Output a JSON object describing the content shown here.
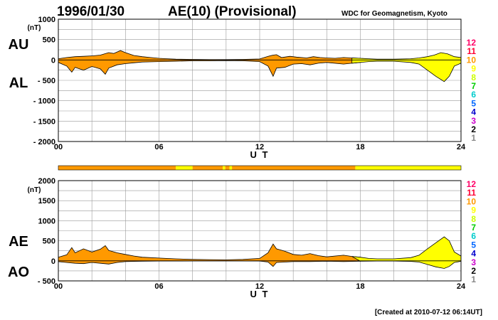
{
  "header": {
    "date": "1996/01/30",
    "title": "AE(10) (Provisional)",
    "source": "WDC for Geomagnetism, Kyoto"
  },
  "footer": {
    "created": "[Created at 2010-07-12 06:14UT]"
  },
  "colors": {
    "orange": "#ff9900",
    "yellow": "#ffff00",
    "grid": "#999999",
    "levels": [
      "#cccccc",
      "#888888",
      "#000000",
      "#cc00cc",
      "#0000cc",
      "#0066ff",
      "#00cccc",
      "#00cc00",
      "#ccff00",
      "#ffff00",
      "#ff9900",
      "#ff0033",
      "#ff0066"
    ]
  },
  "level_labels": [
    "1",
    "2",
    "3",
    "4",
    "5",
    "6",
    "7",
    "8",
    "9",
    "10",
    "11",
    "12"
  ],
  "activity_bar": [
    {
      "from": 0,
      "to": 7.0,
      "level": 10
    },
    {
      "from": 7.0,
      "to": 8.0,
      "level": 9
    },
    {
      "from": 8.0,
      "to": 9.8,
      "level": 10
    },
    {
      "from": 9.8,
      "to": 9.95,
      "level": 9
    },
    {
      "from": 9.95,
      "to": 10.2,
      "level": 10
    },
    {
      "from": 10.2,
      "to": 10.35,
      "level": 9
    },
    {
      "from": 10.35,
      "to": 17.7,
      "level": 10
    },
    {
      "from": 17.7,
      "to": 24,
      "level": 9
    }
  ],
  "chart_data": [
    {
      "type": "area",
      "panel": "AU/AL",
      "ylabel_top": "AU",
      "ylabel_bottom": "AL",
      "unit": "(nT)",
      "xlabel": "U T",
      "ylim": [
        -2000,
        1000
      ],
      "yticks": [
        "1000",
        "500",
        "0",
        "- 500",
        "- 1000",
        "- 1500",
        "- 2000"
      ],
      "ytick_values": [
        1000,
        500,
        0,
        -500,
        -1000,
        -1500,
        -2000
      ],
      "xticks": [
        "00",
        "06",
        "12",
        "18",
        "24"
      ],
      "xtick_values": [
        0,
        6,
        12,
        18,
        24
      ],
      "grid": true,
      "series": [
        {
          "values_upper": [
            [
              0,
              30
            ],
            [
              0.5,
              60
            ],
            [
              1,
              80
            ],
            [
              1.5,
              90
            ],
            [
              2,
              100
            ],
            [
              2.5,
              120
            ],
            [
              3,
              180
            ],
            [
              3.3,
              160
            ],
            [
              3.7,
              230
            ],
            [
              4,
              180
            ],
            [
              4.5,
              110
            ],
            [
              5,
              80
            ],
            [
              5.5,
              60
            ],
            [
              6,
              40
            ],
            [
              6.5,
              30
            ],
            [
              7,
              20
            ],
            [
              8,
              15
            ],
            [
              9,
              10
            ],
            [
              10,
              10
            ],
            [
              11,
              15
            ],
            [
              12,
              25
            ],
            [
              12.5,
              90
            ],
            [
              12.8,
              120
            ],
            [
              13,
              130
            ],
            [
              13.3,
              60
            ],
            [
              13.8,
              90
            ],
            [
              14.2,
              70
            ],
            [
              14.8,
              50
            ],
            [
              15.2,
              80
            ],
            [
              15.6,
              60
            ],
            [
              16,
              50
            ],
            [
              16.5,
              40
            ],
            [
              17,
              60
            ],
            [
              17.5,
              50
            ],
            [
              18,
              40
            ],
            [
              18.5,
              30
            ],
            [
              19,
              20
            ],
            [
              20,
              20
            ],
            [
              21,
              30
            ],
            [
              21.5,
              50
            ],
            [
              22,
              80
            ],
            [
              22.4,
              120
            ],
            [
              22.8,
              180
            ],
            [
              23.2,
              150
            ],
            [
              23.6,
              80
            ],
            [
              24,
              60
            ]
          ],
          "values_lower": [
            [
              0,
              -60
            ],
            [
              0.5,
              -150
            ],
            [
              0.8,
              -300
            ],
            [
              1,
              -180
            ],
            [
              1.5,
              -250
            ],
            [
              2,
              -160
            ],
            [
              2.5,
              -220
            ],
            [
              2.8,
              -350
            ],
            [
              3,
              -200
            ],
            [
              3.5,
              -120
            ],
            [
              4,
              -90
            ],
            [
              4.5,
              -70
            ],
            [
              5,
              -50
            ],
            [
              6,
              -40
            ],
            [
              7,
              -30
            ],
            [
              8,
              -20
            ],
            [
              9,
              -20
            ],
            [
              10,
              -15
            ],
            [
              11,
              -20
            ],
            [
              12,
              -40
            ],
            [
              12.5,
              -150
            ],
            [
              12.8,
              -400
            ],
            [
              13,
              -200
            ],
            [
              13.5,
              -180
            ],
            [
              14,
              -100
            ],
            [
              14.5,
              -90
            ],
            [
              15,
              -120
            ],
            [
              15.5,
              -80
            ],
            [
              16,
              -60
            ],
            [
              17,
              -100
            ],
            [
              17.5,
              -80
            ],
            [
              18,
              -60
            ],
            [
              18.5,
              -40
            ],
            [
              19,
              -30
            ],
            [
              20,
              -30
            ],
            [
              21,
              -60
            ],
            [
              21.5,
              -100
            ],
            [
              22,
              -250
            ],
            [
              22.5,
              -400
            ],
            [
              23,
              -530
            ],
            [
              23.3,
              -400
            ],
            [
              23.6,
              -150
            ],
            [
              24,
              -80
            ]
          ]
        }
      ]
    },
    {
      "type": "area",
      "panel": "AE/AO",
      "ylabel_top": "AE",
      "ylabel_bottom": "AO",
      "unit": "(nT)",
      "xlabel": "U T",
      "ylim": [
        -500,
        2000
      ],
      "yticks": [
        "2000",
        "1500",
        "1000",
        "500",
        "0",
        "- 500"
      ],
      "ytick_values": [
        2000,
        1500,
        1000,
        500,
        0,
        -500
      ],
      "xticks": [
        "00",
        "06",
        "12",
        "18",
        "24"
      ],
      "xtick_values": [
        0,
        6,
        12,
        18,
        24
      ],
      "grid": true,
      "series": [
        {
          "values_upper": [
            [
              0,
              90
            ],
            [
              0.5,
              150
            ],
            [
              0.8,
              330
            ],
            [
              1,
              200
            ],
            [
              1.5,
              300
            ],
            [
              2,
              220
            ],
            [
              2.5,
              290
            ],
            [
              2.8,
              380
            ],
            [
              3,
              260
            ],
            [
              3.5,
              200
            ],
            [
              4,
              160
            ],
            [
              4.5,
              120
            ],
            [
              5,
              90
            ],
            [
              6,
              70
            ],
            [
              7,
              50
            ],
            [
              8,
              35
            ],
            [
              9,
              30
            ],
            [
              10,
              25
            ],
            [
              11,
              35
            ],
            [
              12,
              60
            ],
            [
              12.5,
              200
            ],
            [
              12.8,
              420
            ],
            [
              13,
              300
            ],
            [
              13.5,
              240
            ],
            [
              14,
              160
            ],
            [
              14.5,
              140
            ],
            [
              15,
              180
            ],
            [
              15.5,
              130
            ],
            [
              16,
              100
            ],
            [
              17,
              140
            ],
            [
              17.5,
              110
            ],
            [
              18,
              90
            ],
            [
              18.5,
              60
            ],
            [
              19,
              50
            ],
            [
              20,
              50
            ],
            [
              21,
              80
            ],
            [
              21.5,
              140
            ],
            [
              22,
              300
            ],
            [
              22.5,
              450
            ],
            [
              23,
              600
            ],
            [
              23.3,
              500
            ],
            [
              23.6,
              220
            ],
            [
              24,
              120
            ]
          ],
          "values_lower": [
            [
              0,
              -20
            ],
            [
              0.5,
              -40
            ],
            [
              1,
              -60
            ],
            [
              1.5,
              -70
            ],
            [
              2,
              -40
            ],
            [
              2.5,
              -60
            ],
            [
              3,
              -80
            ],
            [
              3.5,
              -40
            ],
            [
              4,
              -20
            ],
            [
              4.5,
              -15
            ],
            [
              5,
              -10
            ],
            [
              6,
              -5
            ],
            [
              7,
              -5
            ],
            [
              8,
              -3
            ],
            [
              9,
              -3
            ],
            [
              10,
              -3
            ],
            [
              11,
              -3
            ],
            [
              12,
              -5
            ],
            [
              12.5,
              -30
            ],
            [
              12.8,
              -140
            ],
            [
              13,
              -40
            ],
            [
              13.5,
              -30
            ],
            [
              14,
              -20
            ],
            [
              14.5,
              -20
            ],
            [
              15,
              -20
            ],
            [
              16,
              -10
            ],
            [
              17,
              -20
            ],
            [
              18,
              -10
            ],
            [
              19,
              -5
            ],
            [
              20,
              -5
            ],
            [
              21,
              -15
            ],
            [
              21.5,
              -30
            ],
            [
              22,
              -90
            ],
            [
              22.5,
              -150
            ],
            [
              23,
              -190
            ],
            [
              23.3,
              -140
            ],
            [
              23.6,
              -40
            ],
            [
              24,
              -10
            ]
          ]
        }
      ]
    }
  ]
}
